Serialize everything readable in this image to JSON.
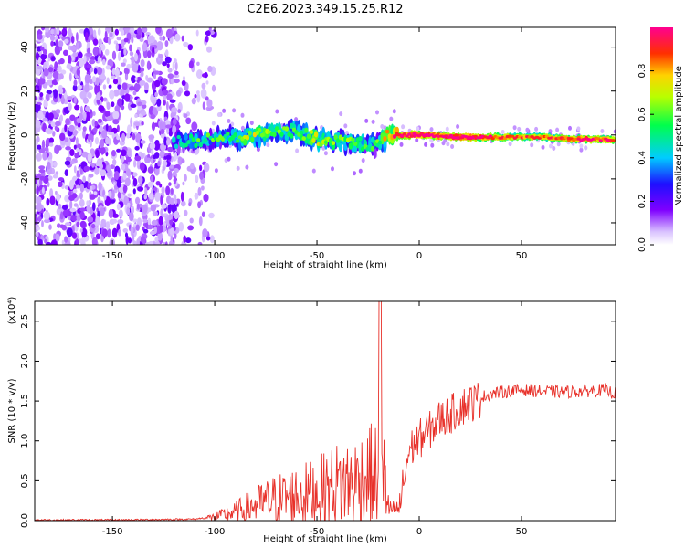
{
  "title": "C2E6.2023.349.15.25.R12",
  "chart_data": [
    {
      "type": "heatmap",
      "xlabel": "Height of straight line (km)",
      "ylabel": "Frequency (Hz)",
      "xlim": [
        -188,
        96
      ],
      "ylim": [
        -50,
        49
      ],
      "x_ticks": [
        -150,
        -100,
        -50,
        0,
        50
      ],
      "y_ticks": [
        -40,
        -20,
        0,
        20,
        40
      ],
      "colorbar": {
        "label": "Normalized spectral amplitude",
        "range": [
          0,
          1
        ],
        "ticks": [
          "0.0",
          "0.2",
          "0.4",
          "0.6",
          "0.8"
        ],
        "colormap": "rainbow (white→violet→blue→cyan→green→yellow→red→magenta)"
      },
      "signal_band": [
        {
          "x": -118,
          "freq": -3,
          "amp": 0.35
        },
        {
          "x": -110,
          "freq": -3,
          "amp": 0.4
        },
        {
          "x": -100,
          "freq": -2,
          "amp": 0.4
        },
        {
          "x": -90,
          "freq": -1,
          "amp": 0.45
        },
        {
          "x": -80,
          "freq": 0,
          "amp": 0.55
        },
        {
          "x": -70,
          "freq": 1,
          "amp": 0.5
        },
        {
          "x": -60,
          "freq": 2,
          "amp": 0.45
        },
        {
          "x": -50,
          "freq": -2,
          "amp": 0.55
        },
        {
          "x": -40,
          "freq": -3,
          "amp": 0.5
        },
        {
          "x": -30,
          "freq": -4,
          "amp": 0.45
        },
        {
          "x": -20,
          "freq": -4,
          "amp": 0.4
        },
        {
          "x": -15,
          "freq": 0,
          "amp": 0.7
        },
        {
          "x": -5,
          "freq": 0,
          "amp": 0.9
        },
        {
          "x": 5,
          "freq": 0,
          "amp": 0.85
        },
        {
          "x": 20,
          "freq": -1,
          "amp": 0.9
        },
        {
          "x": 40,
          "freq": -1,
          "amp": 0.75
        },
        {
          "x": 60,
          "freq": -1,
          "amp": 0.7
        },
        {
          "x": 80,
          "freq": -2,
          "amp": 0.8
        },
        {
          "x": 96,
          "freq": -2,
          "amp": 0.75
        }
      ]
    },
    {
      "type": "line",
      "xlabel": "Height of straight line (km)",
      "ylabel": "SNR (10 * v/v)",
      "y_exponent_label": "(x10⁴)",
      "xlim": [
        -188,
        96
      ],
      "ylim": [
        0,
        2.75
      ],
      "x_ticks": [
        -150,
        -100,
        -50,
        0,
        50
      ],
      "y_ticks": [
        "0.0",
        "0.5",
        "1.0",
        "1.5",
        "2.0",
        "2.5"
      ],
      "line_color": "#e8312a",
      "series": [
        {
          "x": [
            -188,
            -150,
            -110,
            -100,
            -90,
            -80,
            -70,
            -60,
            -50,
            -40,
            -30,
            -25,
            -20,
            -18,
            -15,
            -10,
            -5,
            0,
            5,
            10,
            15,
            20,
            25,
            30,
            35,
            40,
            50,
            60,
            70,
            80,
            90,
            96
          ],
          "y": [
            0.01,
            0.01,
            0.02,
            0.05,
            0.12,
            0.22,
            0.3,
            0.35,
            0.4,
            0.5,
            0.55,
            0.62,
            0.6,
            0.62,
            0.45,
            0.15,
            0.9,
            1.05,
            1.15,
            1.3,
            1.35,
            1.45,
            1.5,
            1.55,
            1.6,
            1.62,
            1.65,
            1.63,
            1.62,
            1.63,
            1.65,
            1.6
          ]
        }
      ]
    }
  ]
}
